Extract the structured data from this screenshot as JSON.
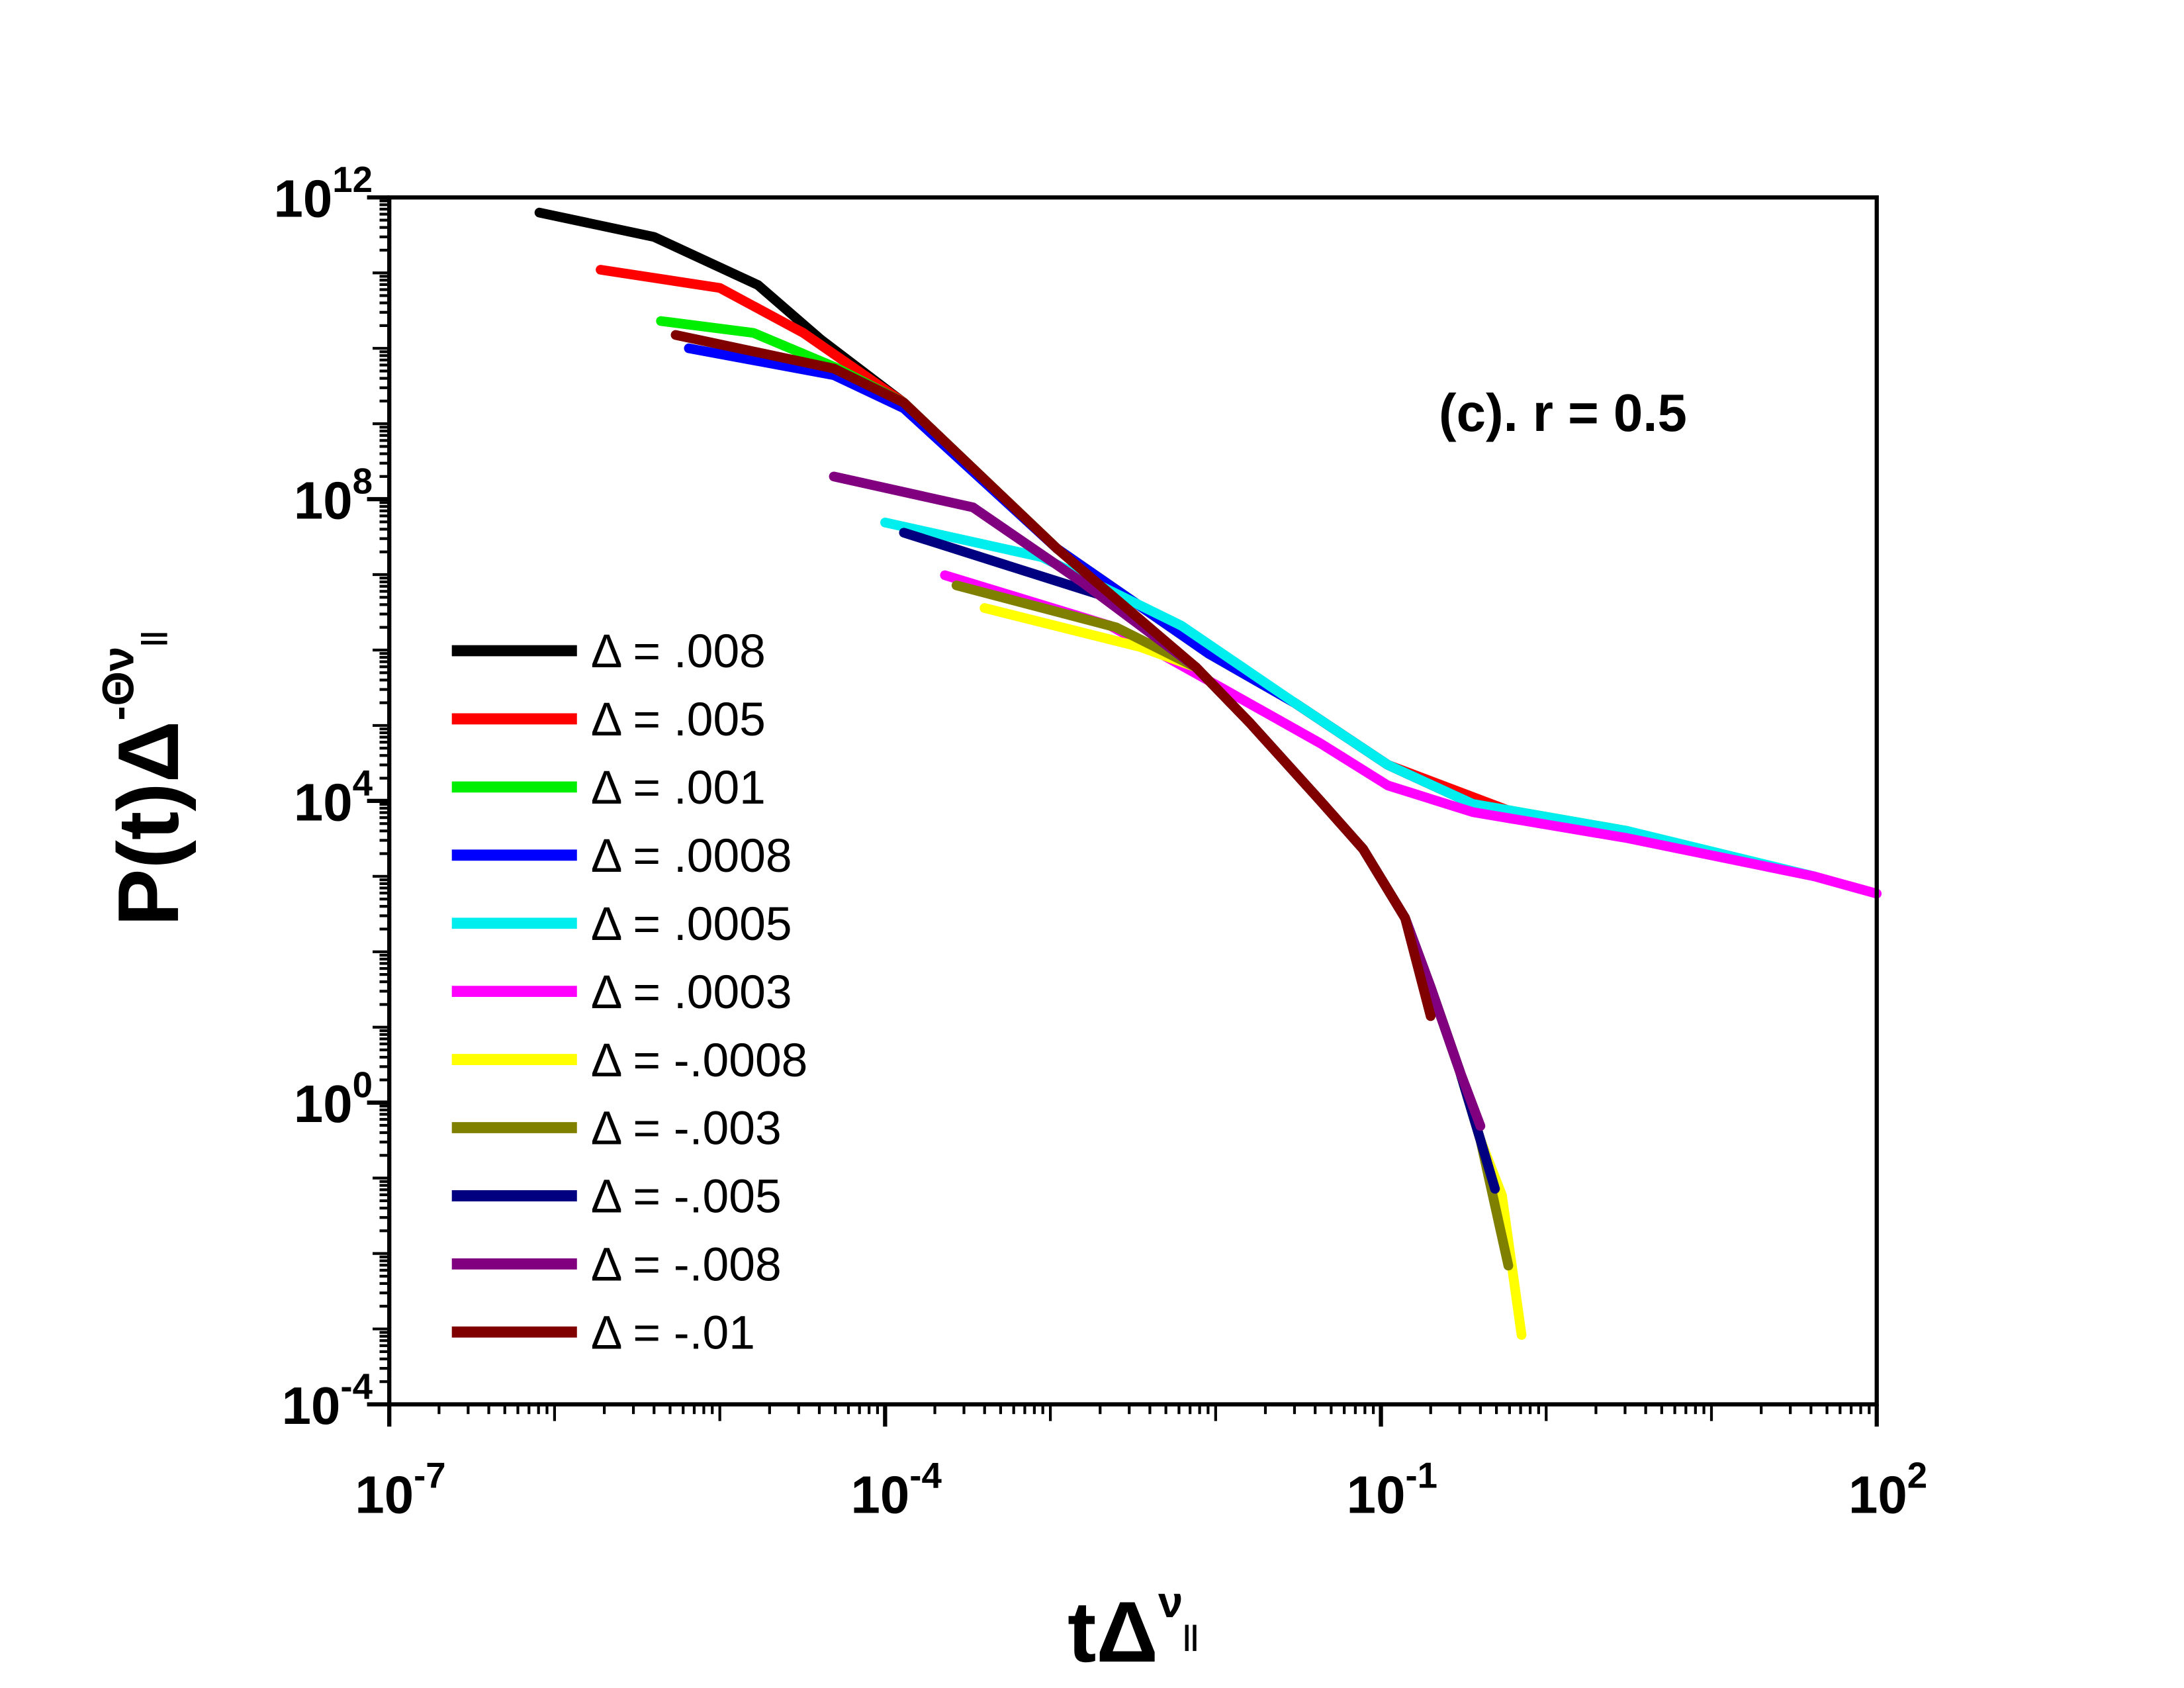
{
  "chart_data": {
    "type": "line",
    "annotation": "(c). r = 0.5",
    "xlabel": {
      "text": "tΔ",
      "sup": "ν",
      "sub": "||"
    },
    "ylabel": {
      "text": "P(t)Δ",
      "sup": "-Θν",
      "sub": "||"
    },
    "xscale": "log",
    "yscale": "log",
    "xlim": [
      1e-07,
      100
    ],
    "ylim": [
      0.0001,
      1000000000000.0
    ],
    "xticks": [
      {
        "value": 1e-07,
        "label": "10",
        "exponent": "-7"
      },
      {
        "value": 0.0001,
        "label": "10",
        "exponent": "-4"
      },
      {
        "value": 0.1,
        "label": "10",
        "exponent": "-1"
      },
      {
        "value": 100,
        "label": "10",
        "exponent": "2"
      }
    ],
    "yticks": [
      {
        "value": 0.0001,
        "label": "10",
        "exponent": "-4"
      },
      {
        "value": 1,
        "label": "10",
        "exponent": "0"
      },
      {
        "value": 10000,
        "label": "10",
        "exponent": "4"
      },
      {
        "value": 100000000,
        "label": "10",
        "exponent": "8"
      },
      {
        "value": 1000000000000.0,
        "label": "10",
        "exponent": "12"
      }
    ],
    "grid": false,
    "legend": "left",
    "series": [
      {
        "name": "Δ = .008",
        "color": "#000000",
        "x": [
          8.1e-07,
          4e-06,
          1.7e-05,
          4.1e-05,
          0.00013,
          0.0011,
          0.0091,
          0.03,
          0.11,
          0.36
        ],
        "values": [
          630000000000.0,
          300000000000.0,
          69000000000.0,
          13000000000.0,
          1900000000.0,
          22000000.0,
          890000.0,
          200000.0,
          30000.0,
          9100.0
        ]
      },
      {
        "name": "Δ = .005",
        "color": "#ff0000",
        "x": [
          1.9e-06,
          1e-05,
          3.2e-05,
          0.00013,
          0.0011,
          0.0091,
          0.03,
          0.11,
          0.63
        ],
        "values": [
          110000000000.0,
          63000000000.0,
          16000000000.0,
          1900000000.0,
          22000000.0,
          890000.0,
          200000.0,
          30000.0,
          7100.0
        ]
      },
      {
        "name": "Δ = .001",
        "color": "#00ee00",
        "x": [
          4.4e-06,
          1.6e-05,
          5e-05,
          0.00013,
          0.0011,
          0.0091,
          0.03,
          0.11,
          0.36,
          3.1
        ],
        "values": [
          23000000000.0,
          16000000000.0,
          5600000000.0,
          1900000000.0,
          22000000.0,
          890000.0,
          200000.0,
          30000.0,
          9100.0,
          4000.0
        ]
      },
      {
        "name": "Δ = .0008",
        "color": "#0000ff",
        "x": [
          6.5e-06,
          4.9e-05,
          0.00013,
          0.0011,
          0.0091,
          0.03,
          0.11,
          0.36,
          1.6
        ],
        "values": [
          10000000000.0,
          4400000000.0,
          1600000000.0,
          22000000.0,
          890000.0,
          200000.0,
          30000.0,
          9100.0,
          5000.0
        ]
      },
      {
        "name": "Δ = .0005",
        "color": "#00eeee",
        "x": [
          0.0001,
          0.00089,
          0.0062,
          0.03,
          0.11,
          0.36,
          3.1,
          42
        ],
        "values": [
          49000000.0,
          17000000.0,
          2100000.0,
          200000.0,
          30000.0,
          9100.0,
          4000.0,
          1000.0
        ]
      },
      {
        "name": "Δ = .0003",
        "color": "#ff00ff",
        "x": [
          0.00023,
          0.0023,
          0.011,
          0.043,
          0.11,
          0.36,
          3.1,
          42,
          100
        ],
        "values": [
          9800000.0,
          2100000.0,
          310000.0,
          58000.0,
          16000.0,
          7100.0,
          3200.0,
          1000.0,
          590
        ]
      },
      {
        "name": "Δ = -.0008",
        "color": "#ffff00",
        "x": [
          0.0004,
          0.0035,
          0.0076,
          0.016,
          0.043,
          0.078,
          0.14,
          0.2,
          0.3,
          0.4,
          0.54,
          0.71
        ],
        "values": [
          3600000.0,
          1100000.0,
          590000.0,
          110000.0,
          10000.0,
          2300.0,
          280,
          34,
          2.6,
          0.32,
          0.059,
          0.00083
        ]
      },
      {
        "name": "Δ = -.003",
        "color": "#808000",
        "x": [
          0.00027,
          0.0025,
          0.0076,
          0.016,
          0.043,
          0.078,
          0.14,
          0.2,
          0.3,
          0.4,
          0.59
        ],
        "values": [
          7200000.0,
          2000000.0,
          590000.0,
          110000.0,
          10000.0,
          2300.0,
          280,
          34,
          2.6,
          0.32,
          0.0069
        ]
      },
      {
        "name": "Δ = -.005",
        "color": "#000080",
        "x": [
          0.00013,
          0.0023,
          0.0076,
          0.016,
          0.043,
          0.078,
          0.14,
          0.2,
          0.3,
          0.4,
          0.49
        ],
        "values": [
          36000000.0,
          4900000.0,
          590000.0,
          110000.0,
          10000.0,
          2300.0,
          280,
          34,
          2.6,
          0.32,
          0.072
        ]
      },
      {
        "name": "Δ = -.008",
        "color": "#800080",
        "x": [
          4.9e-05,
          0.00034,
          0.0016,
          0.0076,
          0.016,
          0.043,
          0.078,
          0.14,
          0.2,
          0.3,
          0.4
        ],
        "values": [
          200000000.0,
          78000000.0,
          7600000.0,
          590000.0,
          110000.0,
          10000.0,
          2300.0,
          280,
          34,
          2.6,
          0.49
        ]
      },
      {
        "name": "Δ = -.01",
        "color": "#800000",
        "x": [
          5.4e-06,
          4.9e-05,
          0.00013,
          0.0011,
          0.0076,
          0.016,
          0.043,
          0.078,
          0.14,
          0.2
        ],
        "values": [
          15000000000.0,
          5400000000.0,
          1900000000.0,
          22000000.0,
          590000.0,
          110000.0,
          10000.0,
          2300.0,
          280,
          14
        ]
      }
    ]
  }
}
